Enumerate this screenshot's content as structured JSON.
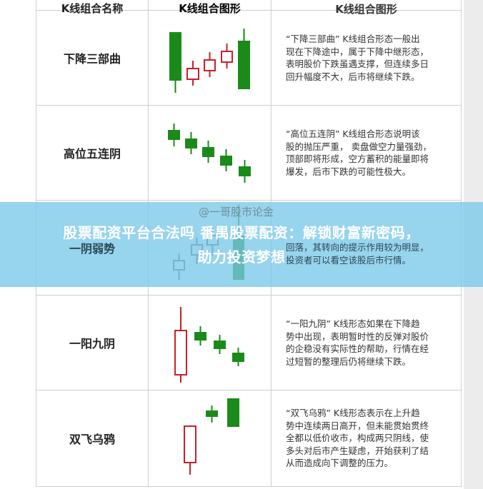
{
  "table": {
    "headers": [
      "K线组合名称",
      "K线组合图形",
      "K线组合图形"
    ],
    "rows": [
      {
        "name": "下降三部曲",
        "lines": [
          "“下降三部曲” K线组合形态一般出",
          "现在下降途中，属于下降中继形态，",
          "表明股价下跌虽遇支撑，但连续多日",
          "回升幅度不大，后市将继续下跌。"
        ]
      },
      {
        "name": "高位五连阴",
        "lines": [
          "“高位五连阴” K线组合形态说明该",
          "股的抛压严重， 卖盘做空力量强劲，",
          "顶部即将形成，空方蓄积的能量即将",
          "爆发，后市下跌的可能性极大。"
        ]
      },
      {
        "name": "一阴弱势",
        "lines": [
          "",
          "回落，其转向的提示作用较为明显，",
          "投资者可以看空该股后市行情。"
        ]
      },
      {
        "name": "一阳九阴",
        "lines": [
          "“一阳九阴” K线形态如果在下降趋",
          "势中出现，表明暂时性的反弹对股价",
          "的企稳没有实际性的帮助，行情在经",
          "过短暂的整理后仍将继续下跌。"
        ]
      },
      {
        "name": "双飞乌鸦",
        "lines": [
          "“双飞乌鸦” K线形态表示在上升趋",
          "势中连续两日高开，但未能贯始贯终",
          "全都以低价收市，构成两只阴线，使",
          "多头对后市产生疑虑，开始获利了结",
          "从而造成向下调整的压力。"
        ]
      }
    ]
  },
  "watermark": "@一哥股市论金",
  "banner": {
    "line1": "股票配资平台合法吗 番禺股票配资：解锁财富新密码，",
    "line2": "助力投资梦想"
  },
  "colors": {
    "bear": "#1a8a1a",
    "bull": "#c8202a",
    "neutral": "#6e5e7e",
    "banner": "#7ac8e8"
  }
}
